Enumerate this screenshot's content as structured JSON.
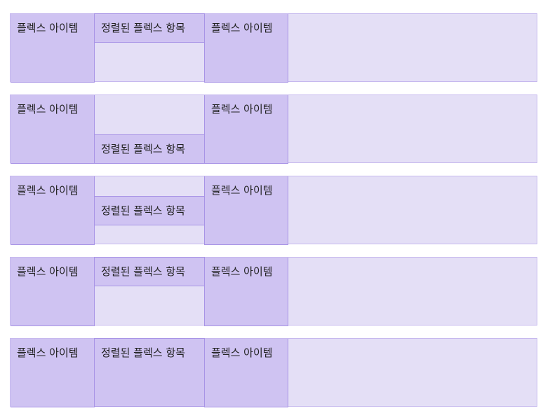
{
  "examples": [
    {
      "align": "start",
      "items": [
        "플렉스 아이템",
        "정렬된 플렉스 항목",
        "플렉스 아이템"
      ]
    },
    {
      "align": "end",
      "items": [
        "플렉스 아이템",
        "정렬된 플렉스 항목",
        "플렉스 아이템"
      ]
    },
    {
      "align": "center",
      "items": [
        "플렉스 아이템",
        "정렬된 플렉스 항목",
        "플렉스 아이템"
      ]
    },
    {
      "align": "start",
      "items": [
        "플렉스 아이템",
        "정렬된 플렉스 항목",
        "플렉스 아이템"
      ]
    },
    {
      "align": "stretch",
      "items": [
        "플렉스 아이템",
        "정렬된 플렉스 항목",
        "플렉스 아이템"
      ]
    }
  ],
  "colors": {
    "container_bg": "#e4dff6",
    "item_bg": "#cfc3f2",
    "item_border": "#a894e6"
  }
}
